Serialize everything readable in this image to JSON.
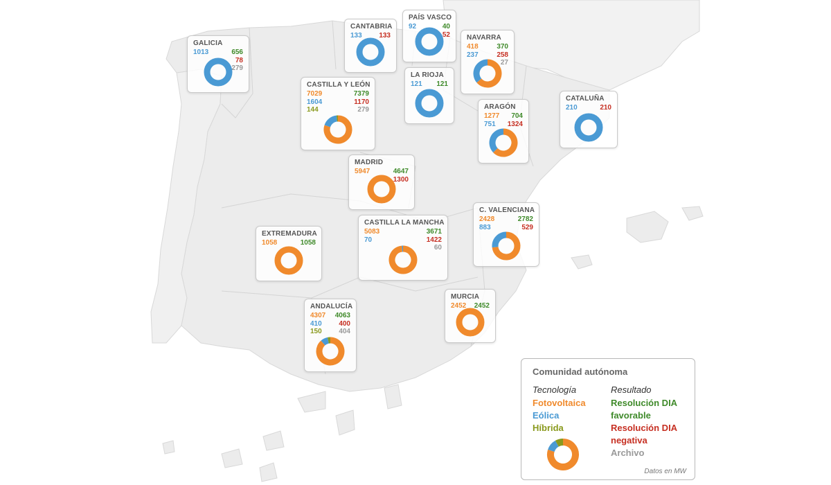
{
  "colors": {
    "fotovoltaica": "#f08a2c",
    "eolica": "#4a9ad4",
    "hibrida": "#8a9a1e",
    "favorable": "#3f8a2a",
    "negativa": "#c62f22",
    "archivo": "#999999",
    "land": "#ececec",
    "border": "#d2d2d2"
  },
  "regions": [
    {
      "id": "galicia",
      "name": "GALICIA",
      "foto": null,
      "eol": "1013",
      "hib": null,
      "fav": "656",
      "neg": "78",
      "arc": "279",
      "donut": {
        "foto": 0,
        "eol": 1013,
        "hib": 0
      }
    },
    {
      "id": "cantabria",
      "name": "CANTABRIA",
      "foto": null,
      "eol": "133",
      "hib": null,
      "fav": null,
      "neg": "133",
      "arc": null,
      "donut": {
        "foto": 0,
        "eol": 133,
        "hib": 0
      }
    },
    {
      "id": "pais-vasco",
      "name": "PAÍS VASCO",
      "foto": null,
      "eol": "92",
      "hib": null,
      "fav": "40",
      "neg": "52",
      "arc": null,
      "donut": {
        "foto": 0,
        "eol": 92,
        "hib": 0
      }
    },
    {
      "id": "navarra",
      "name": "NAVARRA",
      "foto": "418",
      "eol": "237",
      "hib": null,
      "fav": "370",
      "neg": "258",
      "arc": "27",
      "donut": {
        "foto": 418,
        "eol": 237,
        "hib": 0
      }
    },
    {
      "id": "la-rioja",
      "name": "LA RIOJA",
      "foto": null,
      "eol": "121",
      "hib": null,
      "fav": "121",
      "neg": null,
      "arc": null,
      "donut": {
        "foto": 0,
        "eol": 121,
        "hib": 0
      }
    },
    {
      "id": "castilla-leon",
      "name": "CASTILLA Y LEÓN",
      "foto": "7029",
      "eol": "1604",
      "hib": "144",
      "fav": "7379",
      "neg": "1170",
      "arc": "279",
      "donut": {
        "foto": 7029,
        "eol": 1604,
        "hib": 144
      }
    },
    {
      "id": "aragon",
      "name": "ARAGÓN",
      "foto": "1277",
      "eol": "751",
      "hib": null,
      "fav": "704",
      "neg": "1324",
      "arc": null,
      "donut": {
        "foto": 1277,
        "eol": 751,
        "hib": 0
      }
    },
    {
      "id": "cataluna",
      "name": "CATALUÑA",
      "foto": null,
      "eol": "210",
      "hib": null,
      "fav": null,
      "neg": "210",
      "arc": null,
      "donut": {
        "foto": 0,
        "eol": 210,
        "hib": 0
      }
    },
    {
      "id": "madrid",
      "name": "MADRID",
      "foto": "5947",
      "eol": null,
      "hib": null,
      "fav": "4647",
      "neg": "1300",
      "arc": null,
      "donut": {
        "foto": 5947,
        "eol": 0,
        "hib": 0
      }
    },
    {
      "id": "c-valenciana",
      "name": "C. VALENCIANA",
      "foto": "2428",
      "eol": "883",
      "hib": null,
      "fav": "2782",
      "neg": "529",
      "arc": null,
      "donut": {
        "foto": 2428,
        "eol": 883,
        "hib": 0
      }
    },
    {
      "id": "extremadura",
      "name": "EXTREMADURA",
      "foto": "1058",
      "eol": null,
      "hib": null,
      "fav": "1058",
      "neg": null,
      "arc": null,
      "donut": {
        "foto": 1058,
        "eol": 0,
        "hib": 0
      }
    },
    {
      "id": "castilla-la-mancha",
      "name": "CASTILLA LA MANCHA",
      "foto": "5083",
      "eol": "70",
      "hib": null,
      "fav": "3671",
      "neg": "1422",
      "arc": "60",
      "donut": {
        "foto": 5083,
        "eol": 70,
        "hib": 0
      }
    },
    {
      "id": "murcia",
      "name": "MURCIA",
      "foto": "2452",
      "eol": null,
      "hib": null,
      "fav": "2452",
      "neg": null,
      "arc": null,
      "donut": {
        "foto": 2452,
        "eol": 0,
        "hib": 0
      }
    },
    {
      "id": "andalucia",
      "name": "ANDALUCÍA",
      "foto": "4307",
      "eol": "410",
      "hib": "150",
      "fav": "4063",
      "neg": "400",
      "arc": "404",
      "donut": {
        "foto": 4307,
        "eol": 410,
        "hib": 150
      }
    }
  ],
  "legend": {
    "title": "Comunidad autónoma",
    "tech_heading": "Tecnología",
    "result_heading": "Resultado",
    "fotovoltaica": "Fotovoltaica",
    "eolica": "Eólica",
    "hibrida": "Híbrida",
    "favorable_1": "Resolución DIA",
    "favorable_2": "favorable",
    "negativa_1": "Resolución DIA",
    "negativa_2": "negativa",
    "archivo": "Archivo",
    "note": "Datos en MW",
    "donut": {
      "foto": 80,
      "eol": 12,
      "hib": 8
    }
  }
}
